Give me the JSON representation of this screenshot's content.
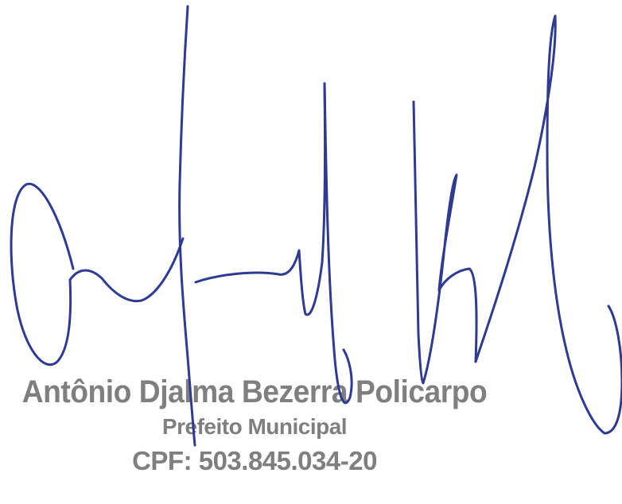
{
  "stamp": {
    "name": "Antônio Djalma Bezerra Policarpo",
    "role": "Prefeito Municipal",
    "cpf": "CPF: 503.845.034-20"
  },
  "colors": {
    "ink": "#2f3a92",
    "stamp": "#7f7f7f",
    "paper": "#ffffff"
  }
}
